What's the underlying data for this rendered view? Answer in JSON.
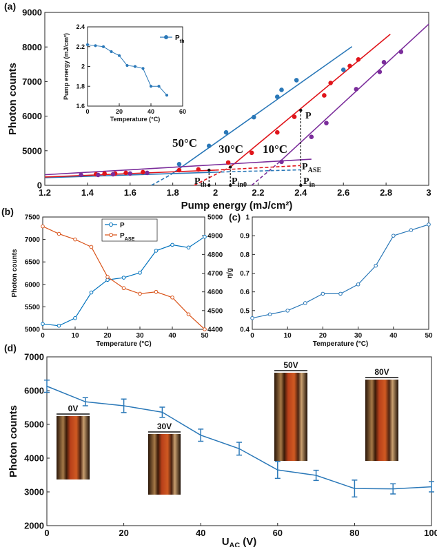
{
  "chart_data": [
    {
      "type": "scatter",
      "panel_label": "(a)",
      "x_label": "Pump energy (mJ/cm²)",
      "y_label": "Photon counts",
      "xlim": [
        1.2,
        3
      ],
      "xticks": [
        1.2,
        1.4,
        1.6,
        1.8,
        2,
        2.2,
        2.4,
        2.6,
        2.8,
        3
      ],
      "ylim": [
        0,
        9000
      ],
      "yticks": [
        0,
        5000,
        6000,
        7000,
        8000,
        9000
      ],
      "ybreak": 5000,
      "marker": "filled",
      "series": [
        {
          "color": "#2a78b8",
          "x": [
            1.83,
            1.97,
            2.05,
            2.18,
            2.29,
            2.31,
            2.38,
            2.6
          ],
          "values": [
            3060,
            5140,
            5530,
            5970,
            6560,
            6760,
            7040,
            7340
          ]
        },
        {
          "color": "#e0151b",
          "x": [
            1.44,
            1.48,
            1.53,
            1.58,
            1.66,
            1.83,
            1.92,
            2.06,
            2.17,
            2.29,
            2.37,
            2.51,
            2.54,
            2.63,
            2.67
          ],
          "values": [
            1600,
            1700,
            1700,
            1800,
            1900,
            2200,
            2300,
            3300,
            4700,
            5530,
            5980,
            6600,
            6960,
            7450,
            7640
          ]
        },
        {
          "color": "#7b2d9b",
          "x": [
            1.37,
            1.45,
            1.52,
            1.6,
            1.68,
            2.31,
            2.45,
            2.52,
            2.66,
            2.77,
            2.79,
            2.87
          ],
          "values": [
            1500,
            1500,
            1600,
            1700,
            1800,
            3400,
            5400,
            5800,
            6780,
            7280,
            7560,
            7860
          ]
        }
      ],
      "fits": [
        {
          "color": "#2a78b8",
          "dashed": false,
          "x": [
            1.79,
            2.64
          ],
          "values": [
            1530,
            8010
          ]
        },
        {
          "color": "#2a78b8",
          "dashed": true,
          "x": [
            1.7,
            1.79
          ],
          "values": [
            0,
            1530
          ]
        },
        {
          "color": "#e0151b",
          "dashed": false,
          "x": [
            2.07,
            2.82
          ],
          "values": [
            2650,
            8370
          ]
        },
        {
          "color": "#e0151b",
          "dashed": true,
          "x": [
            1.9,
            2.07
          ],
          "values": [
            0,
            2650
          ]
        },
        {
          "color": "#7b2d9b",
          "dashed": false,
          "x": [
            2.3,
            3
          ],
          "values": [
            3370,
            8660
          ]
        },
        {
          "color": "#7b2d9b",
          "dashed": true,
          "x": [
            2.17,
            2.3
          ],
          "values": [
            0,
            3370
          ]
        },
        {
          "color": "#2a78b8",
          "dashed": false,
          "x": [
            1.2,
            2.0
          ],
          "values": [
            1100,
            1900
          ]
        },
        {
          "color": "#2a78b8",
          "dashed": true,
          "x": [
            2.0,
            2.4
          ],
          "values": [
            1900,
            2240
          ]
        },
        {
          "color": "#e0151b",
          "dashed": false,
          "x": [
            1.2,
            2.0
          ],
          "values": [
            1200,
            2200
          ]
        },
        {
          "color": "#e0151b",
          "dashed": true,
          "x": [
            2.0,
            2.4
          ],
          "values": [
            2200,
            2860
          ]
        },
        {
          "color": "#7b2d9b",
          "dashed": false,
          "x": [
            1.2,
            2.45
          ],
          "values": [
            1530,
            3780
          ]
        }
      ],
      "thresholds": [
        {
          "x": 1.97,
          "y": 2200
        },
        {
          "x": 2.07,
          "y": 2650
        },
        {
          "x": 2.4,
          "y": 6170
        }
      ],
      "annotations": [
        {
          "text": "50°C",
          "color": "#2a78b8"
        },
        {
          "text": "30°C",
          "color": "#e0151b"
        },
        {
          "text": "10°C",
          "color": "#7b2d9b"
        },
        {
          "text": "P"
        },
        {
          "text": "P",
          "sub": "ASE"
        },
        {
          "text": "P",
          "sub": "th"
        },
        {
          "text": "P",
          "sub": "in0"
        },
        {
          "text": "P",
          "sub": "in"
        }
      ]
    },
    {
      "type": "line",
      "x_label": "Temperature (°C)",
      "y_label": "Pump energy (mJ/cm²)",
      "xlim": [
        0,
        60
      ],
      "xticks": [
        0,
        20,
        40,
        60
      ],
      "ylim": [
        1.6,
        2.4
      ],
      "yticks": [
        1.6,
        1.8,
        2,
        2.2,
        2.4
      ],
      "marker": "filled",
      "x": [
        0,
        5,
        10,
        15,
        20,
        25,
        30,
        35,
        40,
        45,
        50
      ],
      "series": [
        {
          "name": "P",
          "sub": "th",
          "color": "#2a78b8",
          "values": [
            2.22,
            2.21,
            2.2,
            2.15,
            2.11,
            2.01,
            2.0,
            1.98,
            1.8,
            1.8,
            1.71
          ]
        }
      ],
      "legend": "upper right"
    },
    {
      "type": "line",
      "panel_label": "(b)",
      "x_label": "Temperature (°C)",
      "y_label": "Photon counts",
      "xlim": [
        0,
        50
      ],
      "xticks": [
        0,
        10,
        20,
        30,
        40,
        50
      ],
      "ylim": [
        5000,
        7500
      ],
      "yticks": [
        5000,
        5500,
        6000,
        6500,
        7000,
        7500
      ],
      "y2lim": [
        4400,
        5000
      ],
      "y2ticks": [
        4400,
        4500,
        4600,
        4700,
        4800,
        4900,
        5000
      ],
      "marker": "open",
      "x": [
        0,
        5,
        10,
        15,
        20,
        25,
        30,
        35,
        40,
        45,
        50
      ],
      "series": [
        {
          "name": "P",
          "color": "#0072bd",
          "values": [
            5120,
            5080,
            5250,
            5820,
            6100,
            6150,
            6260,
            6750,
            6880,
            6820,
            7060
          ]
        },
        {
          "name": "P",
          "sub": "ASE",
          "color": "#d95319",
          "axis": "y2",
          "values": [
            4950,
            4910,
            4880,
            4840,
            4680,
            4620,
            4590,
            4600,
            4570,
            4480,
            4400
          ]
        }
      ],
      "legend": "upper center"
    },
    {
      "type": "line",
      "panel_label": "(c)",
      "x_label": "Temperature (°C)",
      "y_label": "η/g",
      "xlim": [
        0,
        50
      ],
      "xticks": [
        0,
        10,
        20,
        30,
        40,
        50
      ],
      "ylim": [
        0.4,
        1
      ],
      "yticks": [
        0.4,
        0.5,
        0.6,
        0.7,
        0.8,
        0.9,
        1
      ],
      "marker": "open",
      "x": [
        0,
        5,
        10,
        15,
        20,
        25,
        30,
        35,
        40,
        45,
        50
      ],
      "series": [
        {
          "color": "#2a78b8",
          "values": [
            0.46,
            0.48,
            0.5,
            0.54,
            0.59,
            0.59,
            0.64,
            0.74,
            0.9,
            0.93,
            0.96
          ]
        }
      ]
    },
    {
      "type": "line",
      "panel_label": "(d)",
      "x_label": {
        "text": "U",
        "sub": "AC",
        "rest": " (V)"
      },
      "y_label": "Photon counts",
      "xlim": [
        0,
        100
      ],
      "xticks": [
        0,
        20,
        40,
        60,
        80,
        100
      ],
      "ylim": [
        2000,
        7000
      ],
      "yticks": [
        2000,
        3000,
        4000,
        5000,
        6000,
        7000
      ],
      "marker": "none",
      "x": [
        0,
        10,
        20,
        30,
        40,
        50,
        60,
        70,
        80,
        90,
        100
      ],
      "series": [
        {
          "color": "#2a78b8",
          "values": [
            6130,
            5670,
            5550,
            5360,
            4680,
            4280,
            3650,
            3490,
            3100,
            3090,
            3150
          ],
          "errors": [
            180,
            120,
            200,
            150,
            180,
            190,
            250,
            150,
            250,
            150,
            150
          ]
        }
      ],
      "insets": [
        "0V",
        "30V",
        "50V",
        "80V"
      ]
    }
  ]
}
